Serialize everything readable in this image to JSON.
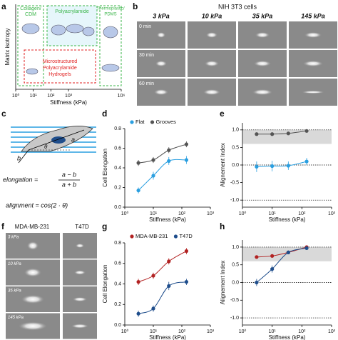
{
  "panel_labels": [
    "a",
    "b",
    "c",
    "d",
    "e",
    "f",
    "g",
    "h"
  ],
  "panel_a": {
    "ylabel": "Matrix isotropy",
    "xlabel": "Stiffness (kPa)",
    "xlim": [
      1,
      1000000
    ],
    "xticks": [
      {
        "value": 1,
        "label": "10⁰"
      },
      {
        "value": 10,
        "label": "10¹"
      },
      {
        "value": 100,
        "label": "10²"
      },
      {
        "value": 1000,
        "label": "10³"
      },
      {
        "value": 1000000,
        "label": "10⁶"
      }
    ],
    "regions": [
      [
        "Collagen/",
        "CDM"
      ],
      [
        "Polyacrylamide"
      ],
      [
        "Thermoplastic/",
        "PDMS"
      ],
      [
        "Microstructured",
        "Polyacrylamide",
        "Hydrogels"
      ]
    ]
  },
  "panel_b": {
    "title": "NIH 3T3 cells",
    "columns": [
      "3 kPa",
      "10 kPa",
      "35 kPa",
      "145 kPa"
    ],
    "rows": [
      "0 min",
      "30 min",
      "60 min"
    ]
  },
  "panel_c": {
    "labels": [
      "a",
      "b",
      "θ"
    ],
    "elongation_lhs": "elongation =",
    "elongation_num": "a − b",
    "elongation_den": "a + b",
    "alignment": "alignment = cos(2 · θ)"
  },
  "panel_f": {
    "columns": [
      "MDA-MB-231",
      "T47D"
    ],
    "rows": [
      "3 kPa",
      "10 kPa",
      "35 kPa",
      "145 kPa"
    ]
  },
  "chart_data": [
    {
      "type": "line",
      "ylabel": "Cell Elongation",
      "xlabel": "Stiffness (kPa)",
      "log_x": true,
      "xlim": [
        1,
        1000
      ],
      "xticks": [
        {
          "value": 1,
          "label": "10⁰"
        },
        {
          "value": 10,
          "label": "10¹"
        },
        {
          "value": 100,
          "label": "10²"
        },
        {
          "value": 1000,
          "label": "10³"
        }
      ],
      "ylim": [
        0,
        0.8
      ],
      "yticks": [
        {
          "value": 0,
          "label": "0.0"
        },
        0.2,
        0.4,
        0.6,
        0.8
      ],
      "x": [
        3,
        10,
        35,
        145
      ],
      "series": [
        {
          "name": "Flat",
          "color": "#2a9fe0",
          "values": [
            0.17,
            0.32,
            0.47,
            0.48
          ],
          "errors": [
            0.03,
            0.04,
            0.04,
            0.04
          ]
        },
        {
          "name": "Grooves",
          "color": "#555555",
          "values": [
            0.45,
            0.48,
            0.58,
            0.64
          ],
          "errors": [
            0.03,
            0.03,
            0.03,
            0.03
          ]
        }
      ]
    },
    {
      "type": "line",
      "ylabel": "Alignement Index",
      "xlabel": "Stiffness (kPa)",
      "log_x": true,
      "xlim": [
        1,
        1000
      ],
      "xticks": [
        {
          "value": 1,
          "label": "10⁰"
        },
        {
          "value": 10,
          "label": "10¹"
        },
        {
          "value": 100,
          "label": "10²"
        },
        {
          "value": 1000,
          "label": "10³"
        }
      ],
      "ylim": [
        -1.2,
        1.2
      ],
      "yticks": [
        {
          "value": -1,
          "label": "-1.0"
        },
        -0.5,
        {
          "value": 0,
          "label": "0.0"
        },
        0.5,
        {
          "value": 1,
          "label": "1.0"
        }
      ],
      "x": [
        3,
        10,
        35,
        145
      ],
      "reference_lines": [
        1,
        0,
        -1
      ],
      "shaded_range": [
        0.6,
        1
      ],
      "series": [
        {
          "color": "#2a9fe0",
          "values": [
            -0.05,
            -0.03,
            -0.02,
            0.1
          ],
          "errors": [
            0.15,
            0.15,
            0.12,
            0.1
          ]
        },
        {
          "color": "#555555",
          "values": [
            0.88,
            0.88,
            0.9,
            0.97
          ],
          "errors": [
            0.04,
            0.04,
            0.03,
            0.02
          ]
        }
      ]
    },
    {
      "type": "line",
      "ylabel": "Cell Elongation",
      "xlabel": "Stiffness (kPa)",
      "log_x": true,
      "xlim": [
        1,
        1000
      ],
      "xticks": [
        {
          "value": 1,
          "label": "10⁰"
        },
        {
          "value": 10,
          "label": "10¹"
        },
        {
          "value": 100,
          "label": "10²"
        },
        {
          "value": 1000,
          "label": "10³"
        }
      ],
      "ylim": [
        0,
        0.8
      ],
      "yticks": [
        {
          "value": 0,
          "label": "0.0"
        },
        0.2,
        0.4,
        0.6,
        0.8
      ],
      "x": [
        3,
        10,
        35,
        145
      ],
      "series": [
        {
          "name": "MDA-MB-231",
          "color": "#b22222",
          "values": [
            0.42,
            0.48,
            0.62,
            0.72
          ],
          "errors": [
            0.03,
            0.03,
            0.03,
            0.03
          ]
        },
        {
          "name": "T47D",
          "color": "#1f4e8c",
          "values": [
            0.11,
            0.16,
            0.38,
            0.42
          ],
          "errors": [
            0.03,
            0.03,
            0.04,
            0.03
          ]
        }
      ]
    },
    {
      "type": "line",
      "ylabel": "Alignement Index",
      "xlabel": "Stiffness (kPa)",
      "log_x": true,
      "xlim": [
        1,
        1000
      ],
      "xticks": [
        {
          "value": 1,
          "label": "10⁰"
        },
        {
          "value": 10,
          "label": "10¹"
        },
        {
          "value": 100,
          "label": "10²"
        },
        {
          "value": 1000,
          "label": "10³"
        }
      ],
      "ylim": [
        -1.2,
        1.2
      ],
      "yticks": [
        {
          "value": -1,
          "label": "-1.0"
        },
        -0.5,
        {
          "value": 0,
          "label": "0.0"
        },
        0.5,
        {
          "value": 1,
          "label": "1.0"
        }
      ],
      "x": [
        3,
        10,
        35,
        145
      ],
      "reference_lines": [
        1,
        0,
        -1
      ],
      "shaded_range": [
        0.6,
        1
      ],
      "series": [
        {
          "color": "#b22222",
          "values": [
            0.72,
            0.75,
            0.85,
            1.0
          ],
          "errors": [
            0.04,
            0.04,
            0.03,
            0.02
          ]
        },
        {
          "color": "#1f4e8c",
          "values": [
            0.0,
            0.38,
            0.85,
            0.97
          ],
          "errors": [
            0.1,
            0.1,
            0.05,
            0.03
          ]
        }
      ]
    }
  ]
}
